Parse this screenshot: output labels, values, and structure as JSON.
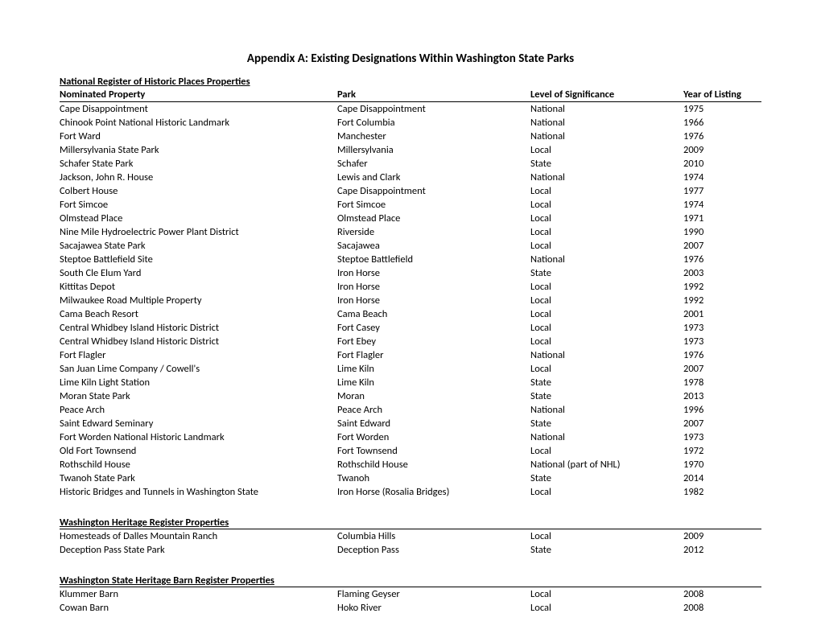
{
  "title": "Appendix A: Existing Designations Within Washington State Parks",
  "headers": {
    "property": "Nominated Property",
    "park": "Park",
    "level": "Level of Significance",
    "year": "Year of Listing"
  },
  "sections": [
    {
      "title": "National Register of Historic Places Properties",
      "rows": [
        {
          "property": "Cape Disappointment",
          "park": "Cape Disappointment",
          "level": "National",
          "year": "1975"
        },
        {
          "property": "Chinook Point National Historic Landmark",
          "park": "Fort Columbia",
          "level": "National",
          "year": "1966"
        },
        {
          "property": "Fort Ward",
          "park": "Manchester",
          "level": "National",
          "year": "1976"
        },
        {
          "property": "Millersylvania State Park",
          "park": "Millersylvania",
          "level": "Local",
          "year": "2009"
        },
        {
          "property": "Schafer State Park",
          "park": "Schafer",
          "level": "State",
          "year": "2010"
        },
        {
          "property": "Jackson, John R. House",
          "park": "Lewis and Clark",
          "level": "National",
          "year": "1974"
        },
        {
          "property": "Colbert House",
          "park": "Cape Disappointment",
          "level": "Local",
          "year": "1977"
        },
        {
          "property": "Fort Simcoe",
          "park": "Fort Simcoe",
          "level": "Local",
          "year": "1974"
        },
        {
          "property": "Olmstead Place",
          "park": "Olmstead Place",
          "level": "Local",
          "year": "1971"
        },
        {
          "property": "Nine Mile Hydroelectric Power Plant District",
          "park": "Riverside",
          "level": "Local",
          "year": "1990"
        },
        {
          "property": "Sacajawea State Park",
          "park": "Sacajawea",
          "level": "Local",
          "year": "2007"
        },
        {
          "property": "Steptoe Battlefield Site",
          "park": "Steptoe Battlefield",
          "level": "National",
          "year": "1976"
        },
        {
          "property": "South Cle Elum Yard",
          "park": "Iron Horse",
          "level": "State",
          "year": "2003"
        },
        {
          "property": "Kittitas Depot",
          "park": "Iron Horse",
          "level": "Local",
          "year": "1992"
        },
        {
          "property": "Milwaukee Road Multiple Property",
          "park": "Iron Horse",
          "level": "Local",
          "year": "1992"
        },
        {
          "property": "Cama Beach Resort",
          "park": "Cama Beach",
          "level": "Local",
          "year": "2001"
        },
        {
          "property": "Central Whidbey Island Historic District",
          "park": "Fort Casey",
          "level": "Local",
          "year": "1973"
        },
        {
          "property": "Central Whidbey Island Historic District",
          "park": "Fort Ebey",
          "level": "Local",
          "year": "1973"
        },
        {
          "property": "Fort Flagler",
          "park": "Fort Flagler",
          "level": "National",
          "year": "1976"
        },
        {
          "property": "San Juan Lime Company / Cowell's",
          "park": "Lime Kiln",
          "level": "Local",
          "year": "2007"
        },
        {
          "property": "Lime Kiln Light Station",
          "park": "Lime Kiln",
          "level": "State",
          "year": "1978"
        },
        {
          "property": "Moran State Park",
          "park": "Moran",
          "level": "State",
          "year": "2013"
        },
        {
          "property": "Peace Arch",
          "park": "Peace Arch",
          "level": "National",
          "year": "1996"
        },
        {
          "property": "Saint Edward Seminary",
          "park": "Saint Edward",
          "level": "State",
          "year": "2007"
        },
        {
          "property": "Fort Worden National Historic Landmark",
          "park": "Fort Worden",
          "level": "National",
          "year": "1973"
        },
        {
          "property": "Old Fort Townsend",
          "park": "Fort Townsend",
          "level": "Local",
          "year": "1972"
        },
        {
          "property": "Rothschild House",
          "park": "Rothschild House",
          "level": "National (part of NHL)",
          "year": "1970"
        },
        {
          "property": "Twanoh State Park",
          "park": "Twanoh",
          "level": "State",
          "year": "2014"
        },
        {
          "property": "Historic Bridges and Tunnels in Washington State",
          "park": "Iron Horse (Rosalia Bridges)",
          "level": "Local",
          "year": "1982"
        }
      ]
    },
    {
      "title": "Washington Heritage Register Properties",
      "rows": [
        {
          "property": "Homesteads of Dalles Mountain Ranch",
          "park": "Columbia Hills",
          "level": "Local",
          "year": "2009"
        },
        {
          "property": "Deception Pass State Park",
          "park": "Deception Pass",
          "level": "State",
          "year": "2012"
        }
      ]
    },
    {
      "title": "Washington State Heritage Barn Register Properties",
      "rows": [
        {
          "property": "Klummer Barn",
          "park": "Flaming Geyser",
          "level": "Local",
          "year": "2008"
        },
        {
          "property": "Cowan Barn",
          "park": "Hoko River",
          "level": "Local",
          "year": "2008"
        }
      ]
    }
  ]
}
